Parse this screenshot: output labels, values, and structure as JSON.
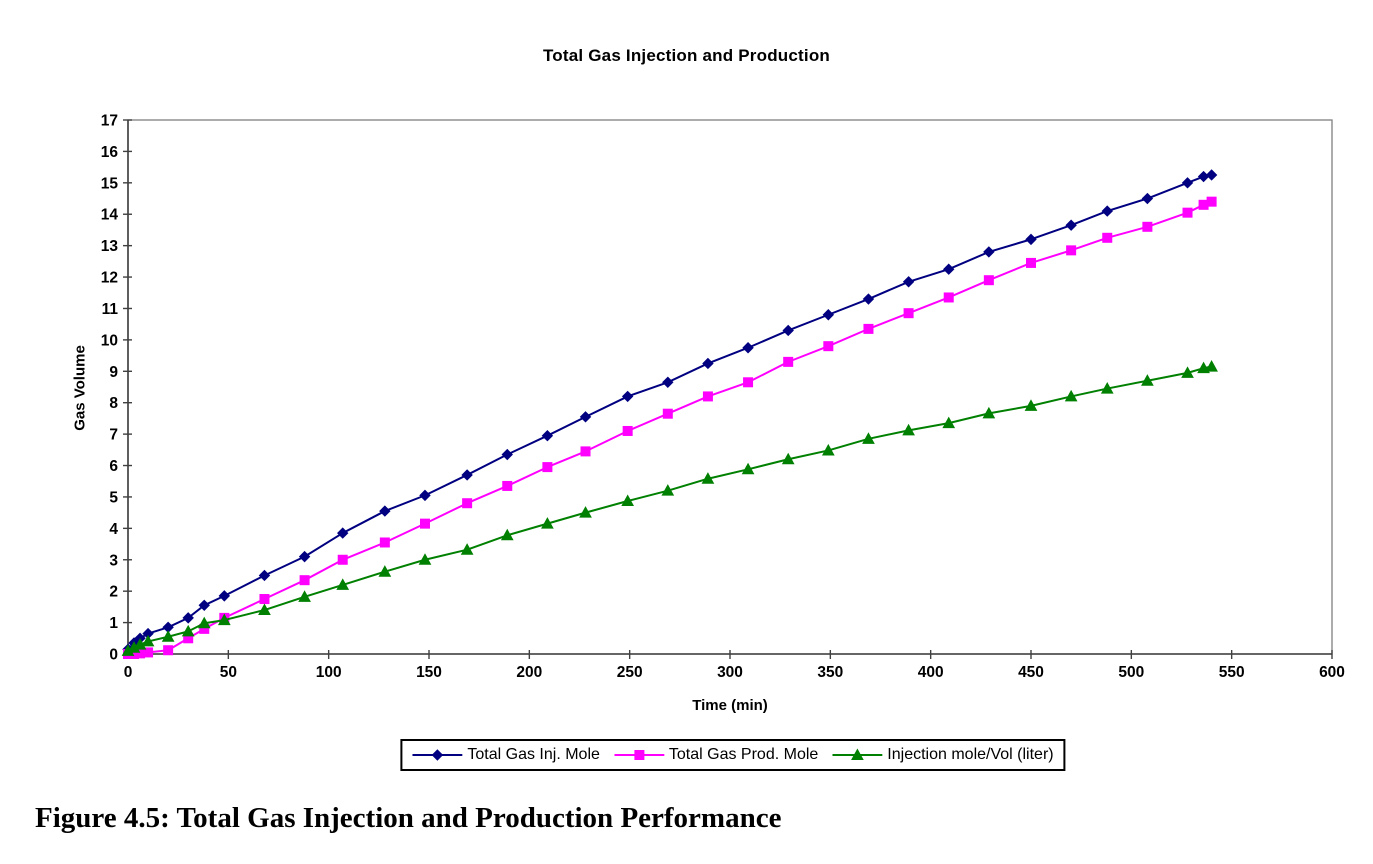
{
  "page": {
    "background": "#ffffff"
  },
  "chart": {
    "title": "Total Gas Injection and Production",
    "x_axis_title": "Time (min)",
    "y_axis_title": "Gas Volume"
  },
  "chart_data": {
    "type": "line",
    "title": "Total Gas Injection and Production",
    "xlabel": "Time (min)",
    "ylabel": "Gas Volume",
    "xlim": [
      0,
      600
    ],
    "ylim": [
      0,
      17
    ],
    "x_tick_step": 50,
    "y_tick_step": 1,
    "grid": false,
    "legend_position": "bottom",
    "x": [
      0,
      3,
      6,
      10,
      20,
      30,
      38,
      48,
      68,
      88,
      107,
      128,
      148,
      169,
      189,
      209,
      228,
      249,
      269,
      289,
      309,
      329,
      349,
      369,
      389,
      409,
      429,
      450,
      470,
      488,
      508,
      528,
      536,
      540
    ],
    "series": [
      {
        "name": "Total Gas Inj. Mole",
        "color": "#000080",
        "marker": "diamond",
        "values": [
          0.15,
          0.35,
          0.5,
          0.65,
          0.85,
          1.15,
          1.55,
          1.85,
          2.5,
          3.1,
          3.85,
          4.55,
          5.05,
          5.7,
          6.35,
          6.95,
          7.55,
          8.2,
          8.65,
          9.25,
          9.75,
          10.3,
          10.8,
          11.3,
          11.85,
          12.25,
          12.8,
          13.2,
          13.65,
          14.1,
          14.5,
          15.0,
          15.2,
          15.25
        ]
      },
      {
        "name": "Total Gas Prod. Mole",
        "color": "#FF00FF",
        "marker": "square",
        "values": [
          0.0,
          0.0,
          0.02,
          0.05,
          0.12,
          0.5,
          0.8,
          1.15,
          1.75,
          2.35,
          3.0,
          3.55,
          4.15,
          4.8,
          5.35,
          5.95,
          6.45,
          7.1,
          7.65,
          8.2,
          8.65,
          9.3,
          9.8,
          10.35,
          10.85,
          11.35,
          11.9,
          12.45,
          12.85,
          13.25,
          13.6,
          14.05,
          14.3,
          14.4
        ]
      },
      {
        "name": "Injection mole/Vol (liter)",
        "color": "#008000",
        "marker": "triangle",
        "values": [
          0.1,
          0.2,
          0.3,
          0.4,
          0.55,
          0.72,
          0.98,
          1.08,
          1.4,
          1.82,
          2.2,
          2.62,
          3.0,
          3.32,
          3.78,
          4.15,
          4.5,
          4.87,
          5.2,
          5.58,
          5.88,
          6.2,
          6.48,
          6.85,
          7.12,
          7.35,
          7.66,
          7.9,
          8.2,
          8.45,
          8.7,
          8.95,
          9.1,
          9.15
        ]
      }
    ]
  },
  "caption": "Figure 4.5: Total Gas Injection and Production Performance"
}
